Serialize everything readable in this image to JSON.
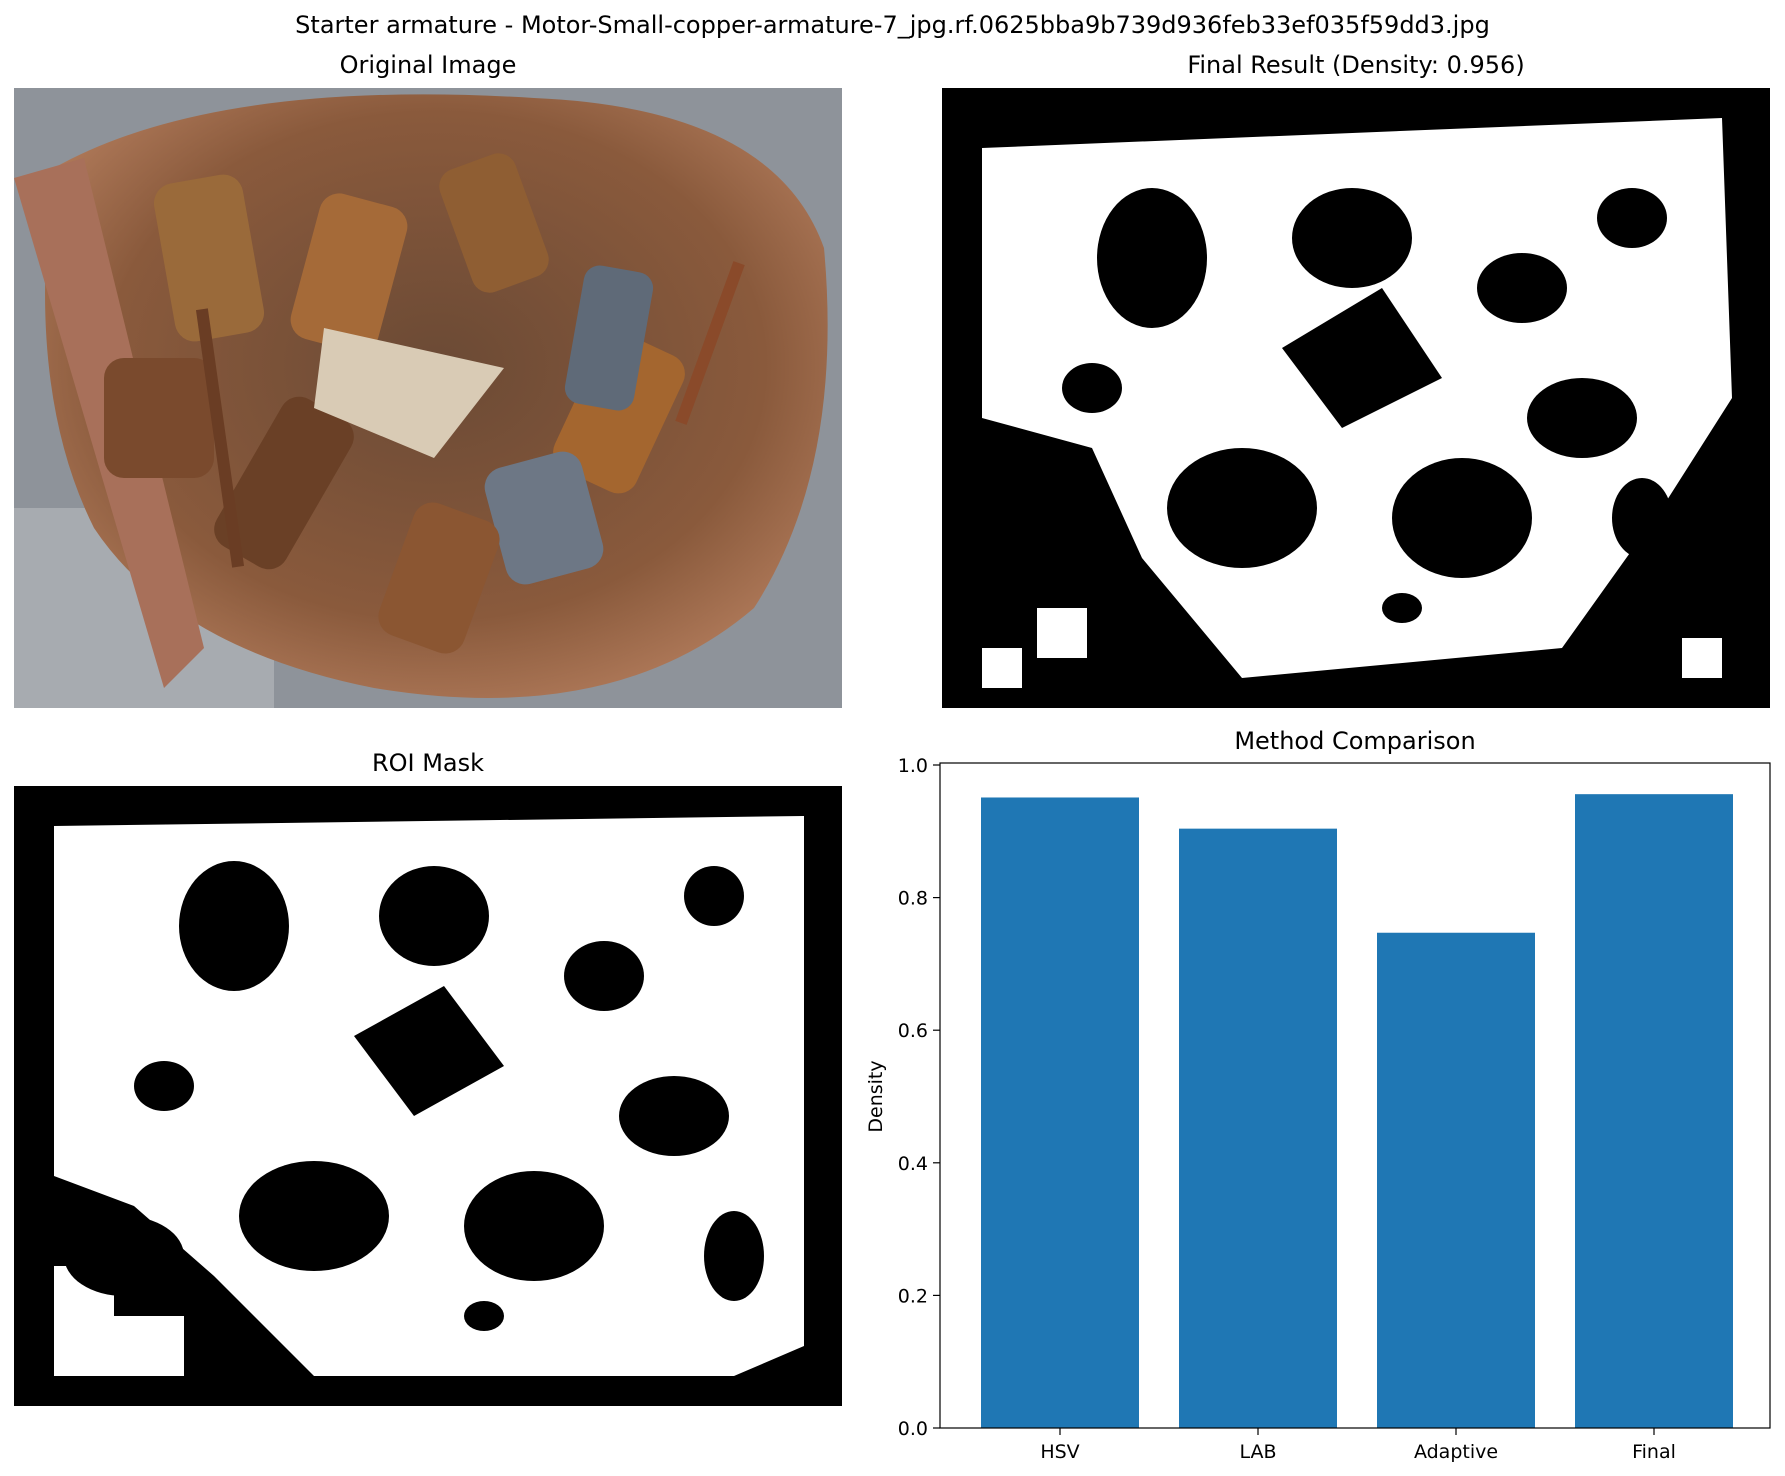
{
  "suptitle": "Starter armature - Motor-Small-copper-armature-7_jpg.rf.0625bba9b739d936feb33ef035f59dd3.jpg",
  "panels": {
    "original": {
      "title": "Original Image"
    },
    "final": {
      "title": "Final Result (Density: 0.956)"
    },
    "roi": {
      "title": "ROI Mask"
    },
    "comparison": {
      "title": "Method Comparison"
    }
  },
  "colors": {
    "bar": "#1f77b4",
    "mask_fg": "#ffffff",
    "mask_bg": "#000000"
  },
  "chart_data": {
    "type": "bar",
    "title": "Method Comparison",
    "xlabel": "",
    "ylabel": "Density",
    "categories": [
      "HSV",
      "LAB",
      "Adaptive",
      "Final"
    ],
    "values": [
      0.951,
      0.904,
      0.747,
      0.956
    ],
    "ylim": [
      0,
      1.0
    ],
    "yticks": [
      "0.0",
      "0.2",
      "0.4",
      "0.6",
      "0.8",
      "1.0"
    ],
    "grid": false
  }
}
